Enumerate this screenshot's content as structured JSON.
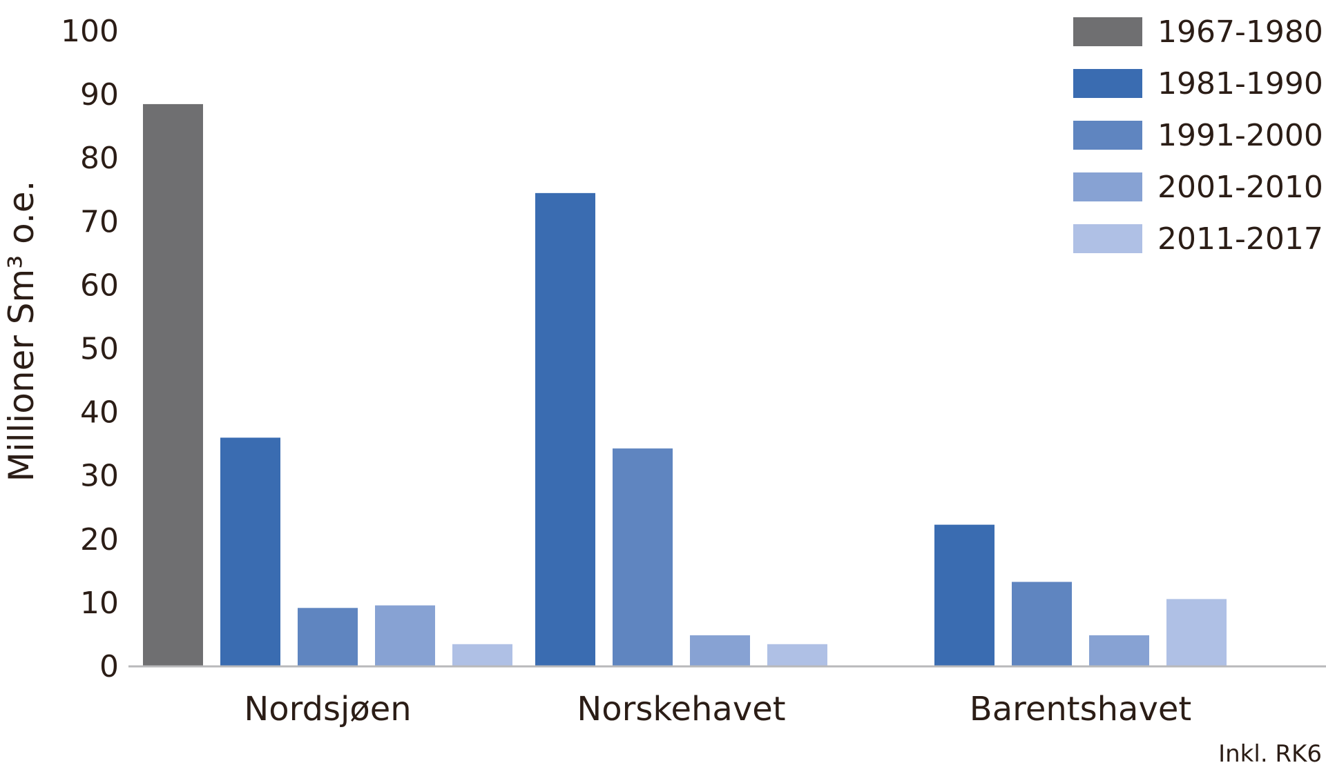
{
  "chart_data": {
    "type": "bar",
    "title": "",
    "xlabel": "",
    "ylabel": "Millioner Sm³ o.e.",
    "ylim": [
      0,
      100
    ],
    "yticks": [
      0,
      10,
      20,
      30,
      40,
      50,
      60,
      70,
      80,
      90,
      100
    ],
    "categories": [
      "Nordsjøen",
      "Norskehavet",
      "Barentshavet"
    ],
    "series": [
      {
        "name": "1967-1980",
        "color": "#6f6f71",
        "values": [
          88.5,
          null,
          null
        ]
      },
      {
        "name": "1981-1990",
        "color": "#3a6cb1",
        "values": [
          36,
          74.5,
          22.3
        ]
      },
      {
        "name": "1991-2000",
        "color": "#5f85c0",
        "values": [
          9.2,
          34.3,
          13.3
        ]
      },
      {
        "name": "2001-2010",
        "color": "#87a2d3",
        "values": [
          9.6,
          4.9,
          4.9
        ]
      },
      {
        "name": "2011-2017",
        "color": "#afc0e5",
        "values": [
          3.5,
          3.5,
          10.6
        ]
      }
    ],
    "legend_position": "top-right",
    "grid": false,
    "note": "Inkl. RK6"
  }
}
